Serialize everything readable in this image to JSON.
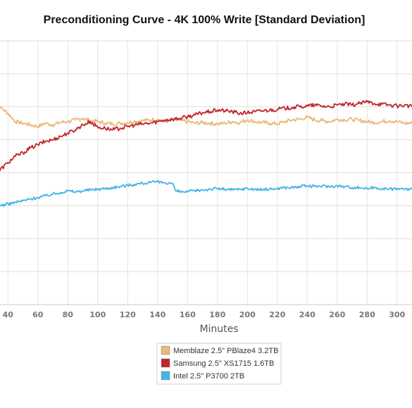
{
  "chart_data": {
    "type": "line",
    "title": "Preconditioning Curve - 4K 100% Write [Standard Deviation]",
    "xlabel": "Minutes",
    "ylabel": "",
    "xlim": [
      30,
      310
    ],
    "ylim": [
      0,
      8
    ],
    "xticks": [
      "40",
      "60",
      "80",
      "100",
      "120",
      "140",
      "160",
      "180",
      "200",
      "220",
      "240",
      "260",
      "280",
      "300"
    ],
    "grid": true,
    "legend_position": "bottom-center",
    "series": [
      {
        "name": "Memblaze 2.5\" PBlaze4 3.2TB",
        "color": "#e8b878",
        "points": [
          [
            30,
            6.05
          ],
          [
            35,
            5.98
          ],
          [
            40,
            5.8
          ],
          [
            45,
            5.55
          ],
          [
            50,
            5.5
          ],
          [
            55,
            5.45
          ],
          [
            60,
            5.4
          ],
          [
            65,
            5.5
          ],
          [
            70,
            5.45
          ],
          [
            75,
            5.52
          ],
          [
            80,
            5.55
          ],
          [
            85,
            5.6
          ],
          [
            90,
            5.65
          ],
          [
            95,
            5.58
          ],
          [
            100,
            5.55
          ],
          [
            105,
            5.5
          ],
          [
            110,
            5.48
          ],
          [
            115,
            5.5
          ],
          [
            120,
            5.52
          ],
          [
            125,
            5.56
          ],
          [
            130,
            5.58
          ],
          [
            135,
            5.6
          ],
          [
            140,
            5.62
          ],
          [
            145,
            5.55
          ],
          [
            150,
            5.6
          ],
          [
            155,
            5.58
          ],
          [
            160,
            5.55
          ],
          [
            165,
            5.5
          ],
          [
            170,
            5.52
          ],
          [
            175,
            5.5
          ],
          [
            180,
            5.48
          ],
          [
            185,
            5.5
          ],
          [
            190,
            5.55
          ],
          [
            195,
            5.52
          ],
          [
            200,
            5.6
          ],
          [
            205,
            5.55
          ],
          [
            210,
            5.52
          ],
          [
            215,
            5.5
          ],
          [
            220,
            5.48
          ],
          [
            225,
            5.55
          ],
          [
            230,
            5.6
          ],
          [
            235,
            5.62
          ],
          [
            240,
            5.68
          ],
          [
            245,
            5.6
          ],
          [
            250,
            5.58
          ],
          [
            255,
            5.55
          ],
          [
            260,
            5.62
          ],
          [
            265,
            5.6
          ],
          [
            270,
            5.62
          ],
          [
            275,
            5.58
          ],
          [
            280,
            5.55
          ],
          [
            285,
            5.52
          ],
          [
            290,
            5.55
          ],
          [
            295,
            5.58
          ],
          [
            300,
            5.55
          ],
          [
            305,
            5.5
          ],
          [
            310,
            5.5
          ]
        ]
      },
      {
        "name": "Samsung 2.5\" XS1715 1.6TB",
        "color": "#c0262a",
        "points": [
          [
            30,
            3.7
          ],
          [
            35,
            4.1
          ],
          [
            40,
            4.3
          ],
          [
            45,
            4.5
          ],
          [
            50,
            4.6
          ],
          [
            55,
            4.75
          ],
          [
            60,
            4.85
          ],
          [
            65,
            4.95
          ],
          [
            70,
            5.0
          ],
          [
            75,
            5.1
          ],
          [
            80,
            5.2
          ],
          [
            85,
            5.3
          ],
          [
            90,
            5.45
          ],
          [
            95,
            5.55
          ],
          [
            100,
            5.38
          ],
          [
            105,
            5.35
          ],
          [
            110,
            5.3
          ],
          [
            115,
            5.35
          ],
          [
            120,
            5.4
          ],
          [
            125,
            5.45
          ],
          [
            130,
            5.48
          ],
          [
            135,
            5.5
          ],
          [
            140,
            5.55
          ],
          [
            145,
            5.6
          ],
          [
            150,
            5.62
          ],
          [
            155,
            5.65
          ],
          [
            160,
            5.7
          ],
          [
            165,
            5.75
          ],
          [
            170,
            5.82
          ],
          [
            175,
            5.85
          ],
          [
            180,
            5.9
          ],
          [
            185,
            5.88
          ],
          [
            190,
            5.85
          ],
          [
            195,
            5.8
          ],
          [
            200,
            5.82
          ],
          [
            205,
            5.85
          ],
          [
            210,
            5.88
          ],
          [
            215,
            5.9
          ],
          [
            220,
            5.92
          ],
          [
            225,
            5.95
          ],
          [
            230,
            5.98
          ],
          [
            235,
            6.0
          ],
          [
            240,
            6.02
          ],
          [
            245,
            6.05
          ],
          [
            250,
            6.02
          ],
          [
            255,
            6.0
          ],
          [
            260,
            6.05
          ],
          [
            265,
            6.08
          ],
          [
            270,
            6.05
          ],
          [
            275,
            6.1
          ],
          [
            280,
            6.15
          ],
          [
            285,
            6.1
          ],
          [
            290,
            6.08
          ],
          [
            295,
            6.05
          ],
          [
            300,
            6.02
          ],
          [
            305,
            6.05
          ],
          [
            310,
            6.0
          ]
        ]
      },
      {
        "name": "Intel 2.5\" P3700 2TB",
        "color": "#42b4e6",
        "points": [
          [
            30,
            2.2
          ],
          [
            32,
            3.1
          ],
          [
            35,
            3.0
          ],
          [
            40,
            3.05
          ],
          [
            45,
            3.1
          ],
          [
            50,
            3.15
          ],
          [
            55,
            3.2
          ],
          [
            60,
            3.25
          ],
          [
            65,
            3.3
          ],
          [
            70,
            3.35
          ],
          [
            75,
            3.4
          ],
          [
            80,
            3.45
          ],
          [
            85,
            3.42
          ],
          [
            90,
            3.45
          ],
          [
            95,
            3.48
          ],
          [
            100,
            3.5
          ],
          [
            105,
            3.52
          ],
          [
            110,
            3.55
          ],
          [
            115,
            3.58
          ],
          [
            120,
            3.62
          ],
          [
            125,
            3.65
          ],
          [
            130,
            3.68
          ],
          [
            135,
            3.7
          ],
          [
            140,
            3.72
          ],
          [
            145,
            3.7
          ],
          [
            150,
            3.68
          ],
          [
            152,
            3.45
          ],
          [
            155,
            3.42
          ],
          [
            160,
            3.42
          ],
          [
            165,
            3.45
          ],
          [
            170,
            3.48
          ],
          [
            175,
            3.5
          ],
          [
            180,
            3.52
          ],
          [
            185,
            3.5
          ],
          [
            190,
            3.48
          ],
          [
            195,
            3.5
          ],
          [
            200,
            3.52
          ],
          [
            205,
            3.5
          ],
          [
            210,
            3.48
          ],
          [
            215,
            3.5
          ],
          [
            220,
            3.52
          ],
          [
            225,
            3.55
          ],
          [
            230,
            3.55
          ],
          [
            235,
            3.58
          ],
          [
            240,
            3.6
          ],
          [
            245,
            3.58
          ],
          [
            250,
            3.6
          ],
          [
            255,
            3.58
          ],
          [
            260,
            3.6
          ],
          [
            265,
            3.58
          ],
          [
            270,
            3.55
          ],
          [
            275,
            3.55
          ],
          [
            280,
            3.52
          ],
          [
            285,
            3.55
          ],
          [
            290,
            3.52
          ],
          [
            295,
            3.5
          ],
          [
            300,
            3.52
          ],
          [
            305,
            3.5
          ],
          [
            310,
            3.5
          ]
        ]
      }
    ]
  }
}
